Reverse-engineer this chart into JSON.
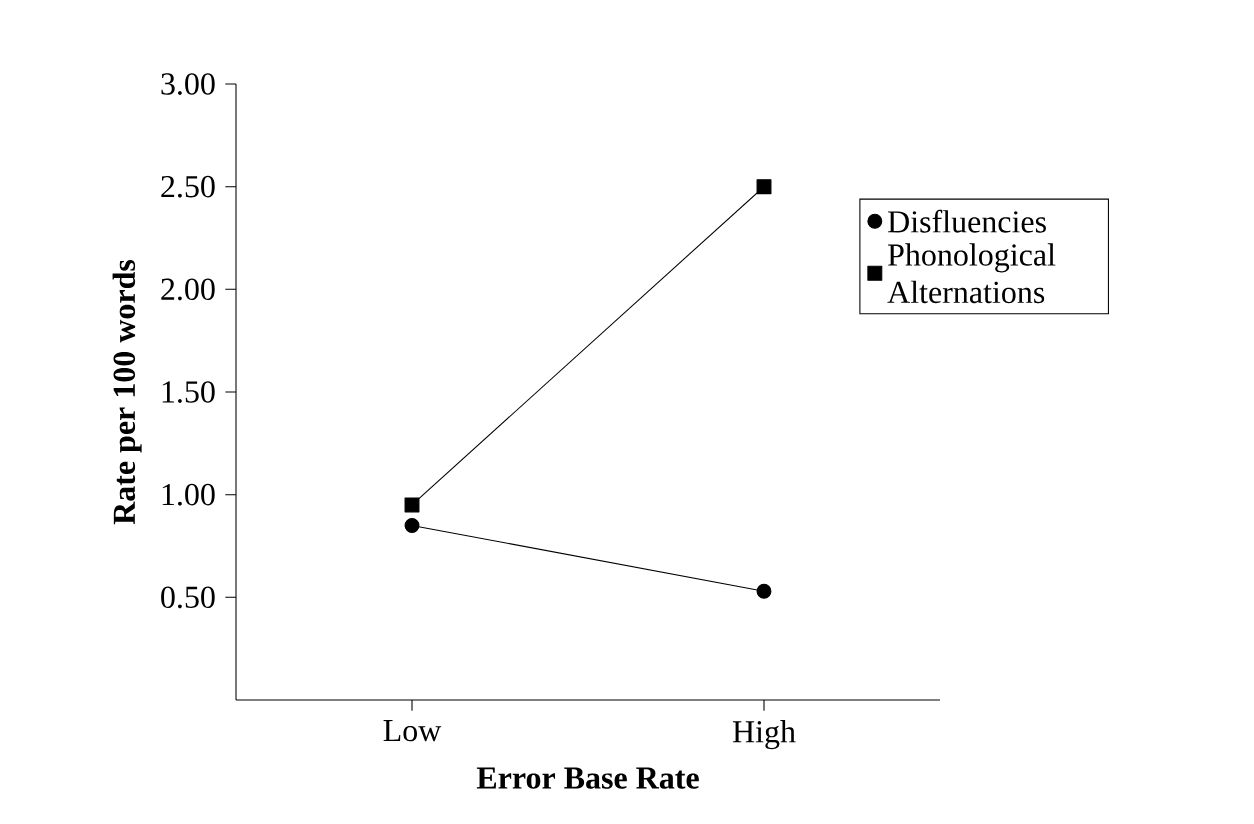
{
  "chart_data": {
    "type": "line",
    "xlabel": "Error Base Rate",
    "ylabel": "Rate per 100 words",
    "categories": [
      "Low",
      "High"
    ],
    "series": [
      {
        "name": "Disfluencies",
        "color": "#000000",
        "marker": "circle",
        "values": [
          0.85,
          0.53
        ]
      },
      {
        "name": "Phonological Alternations",
        "color": "#000000",
        "marker": "square",
        "values": [
          0.95,
          2.5
        ]
      }
    ],
    "ylim": [
      0,
      3
    ],
    "yticks": [
      {
        "value": 0.5,
        "label": "0.50"
      },
      {
        "value": 1.0,
        "label": "1.00"
      },
      {
        "value": 1.5,
        "label": "1.50"
      },
      {
        "value": 2.0,
        "label": "2.00"
      },
      {
        "value": 2.5,
        "label": "2.50"
      },
      {
        "value": 3.0,
        "label": "3.00"
      }
    ],
    "grid": false,
    "legend": "right",
    "line_style": "solid"
  }
}
